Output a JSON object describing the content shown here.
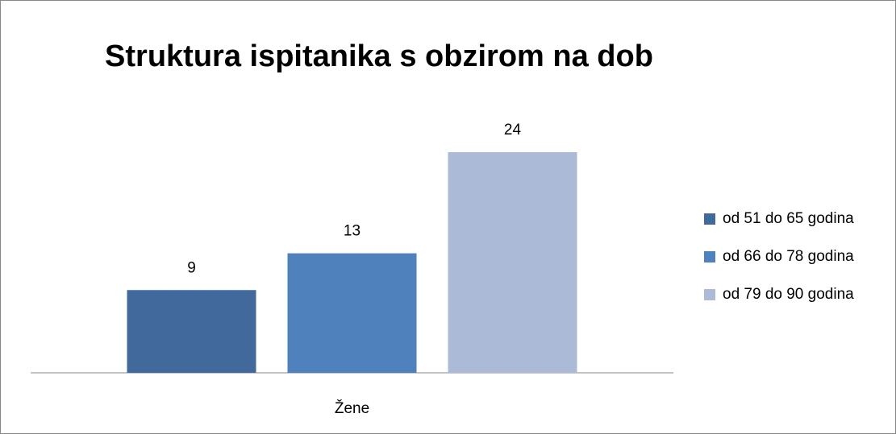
{
  "chart_data": {
    "type": "bar",
    "title": "Struktura ispitanika s obzirom na dob",
    "categories": [
      "Žene"
    ],
    "series": [
      {
        "name": "od 51 do 65 godina",
        "color": "#41699b",
        "values": [
          9
        ]
      },
      {
        "name": "od 66 do 78 godina",
        "color": "#4f81bd",
        "values": [
          13
        ]
      },
      {
        "name": "od 79 do 90 godina",
        "color": "#aabad7",
        "values": [
          24
        ]
      }
    ],
    "ylim": [
      0,
      30
    ],
    "legend": "right"
  }
}
